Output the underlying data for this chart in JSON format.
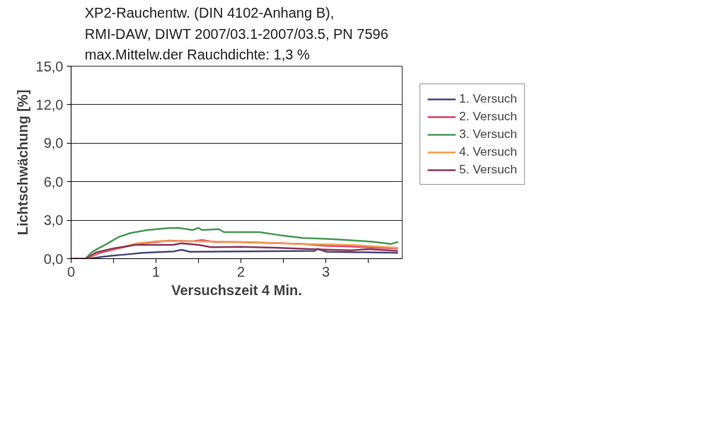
{
  "chart_data": {
    "type": "line",
    "title": "XP2-Rauchentw. (DIN 4102-Anhang B),\nRMI-DAW, DIWT 2007/03.1-2007/03.5, PN 7596\nmax.Mittelw.der Rauchdichte: 1,3 %",
    "xlabel": "Versuchszeit 4 Min.",
    "ylabel": "Lichtschwächung [%]",
    "xlim": [
      0,
      3.9
    ],
    "xticks": [
      0,
      {
        "value": 0.5,
        "label": null
      },
      1,
      {
        "value": 1.5,
        "label": null
      },
      2,
      {
        "value": 2.5,
        "label": null
      },
      3,
      {
        "value": 3.5,
        "label": null
      }
    ],
    "ylim": [
      0,
      15
    ],
    "yticks": [
      {
        "value": 0,
        "label": "0,0"
      },
      {
        "value": 3,
        "label": "3,0"
      },
      {
        "value": 6,
        "label": "6,0"
      },
      {
        "value": 9,
        "label": "9,0"
      },
      {
        "value": 12,
        "label": "12,0"
      },
      {
        "value": 15,
        "label": "15,0"
      }
    ],
    "grid": "y",
    "legend": "right",
    "marker": "none",
    "line_style": "solid",
    "series": [
      {
        "name": "1. Versuch",
        "color": "#4a4a7a",
        "x": [
          0,
          0.2,
          0.48,
          0.62,
          0.84,
          1.21,
          1.3,
          1.4,
          2.87,
          2.9,
          3.01,
          3.85
        ],
        "values": [
          0,
          0,
          0.23,
          0.31,
          0.46,
          0.57,
          0.69,
          0.54,
          0.61,
          0.77,
          0.54,
          0.46
        ]
      },
      {
        "name": "2. Versuch",
        "color": "#e0406a",
        "x": [
          0,
          0.17,
          0.34,
          0.62,
          0.76,
          1.0,
          1.15,
          1.43,
          1.54,
          1.7,
          2.0,
          2.5,
          2.73,
          3.0,
          3.3,
          3.6,
          3.85
        ],
        "values": [
          0,
          0,
          0.45,
          0.9,
          1.15,
          1.3,
          1.4,
          1.35,
          1.45,
          1.3,
          1.3,
          1.2,
          1.15,
          1.0,
          0.95,
          0.85,
          0.8
        ]
      },
      {
        "name": "3. Versuch",
        "color": "#4a9a5a",
        "x": [
          0,
          0.08,
          0.17,
          0.25,
          0.42,
          0.56,
          0.7,
          0.9,
          1.15,
          1.26,
          1.43,
          1.5,
          1.54,
          1.74,
          1.8,
          2.22,
          2.45,
          2.73,
          3.01,
          3.23,
          3.57,
          3.77,
          3.85
        ],
        "values": [
          0,
          0,
          0,
          0.54,
          1.15,
          1.69,
          2.0,
          2.23,
          2.38,
          2.4,
          2.23,
          2.4,
          2.23,
          2.3,
          2.07,
          2.07,
          1.84,
          1.61,
          1.54,
          1.46,
          1.31,
          1.15,
          1.31
        ]
      },
      {
        "name": "4. Versuch",
        "color": "#f0a050",
        "x": [
          0,
          0.17,
          0.34,
          0.62,
          0.76,
          1.04,
          1.88,
          2.73,
          3.29,
          3.85
        ],
        "values": [
          0,
          0,
          0.54,
          0.92,
          1.18,
          1.38,
          1.31,
          1.15,
          1.08,
          0.84
        ]
      },
      {
        "name": "5. Versuch",
        "color": "#8a3a5a",
        "x": [
          0,
          0.17,
          0.3,
          0.5,
          0.76,
          1.2,
          1.3,
          1.5,
          1.65,
          2.0,
          2.4,
          3.0,
          3.3,
          3.5,
          3.85
        ],
        "values": [
          0,
          0,
          0.5,
          0.8,
          1.07,
          1.07,
          1.2,
          1.07,
          0.9,
          0.92,
          0.85,
          0.7,
          0.65,
          0.75,
          0.6
        ]
      }
    ]
  }
}
